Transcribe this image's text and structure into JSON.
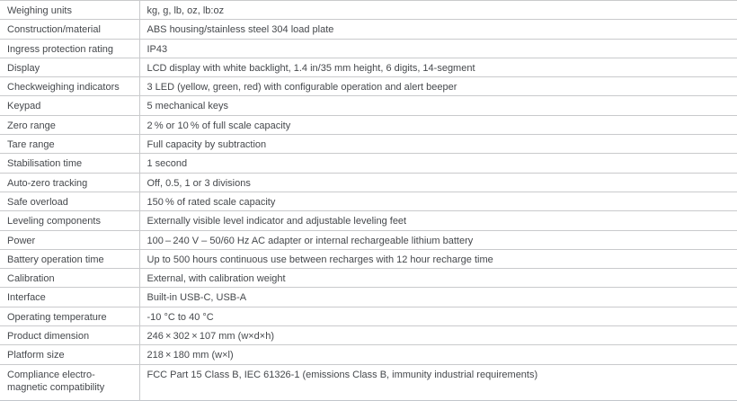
{
  "colors": {
    "background": "#ffffff",
    "border": "#c9cacc",
    "text": "#45484c"
  },
  "table": {
    "rows": [
      {
        "label": "Weighing units",
        "value": "kg, g, lb, oz, lb:oz"
      },
      {
        "label": "Construction/material",
        "value": "ABS housing/stainless steel 304 load plate"
      },
      {
        "label": "Ingress protection rating",
        "value": "IP43"
      },
      {
        "label": "Display",
        "value": "LCD display with white backlight, 1.4 in/35 mm height, 6 digits, 14-segment"
      },
      {
        "label": "Checkweighing indicators",
        "value": "3 LED (yellow, green, red) with configurable operation and alert beeper"
      },
      {
        "label": "Keypad",
        "value": "5 mechanical keys"
      },
      {
        "label": "Zero range",
        "value": "2 % or 10 % of full scale capacity"
      },
      {
        "label": "Tare range",
        "value": "Full capacity by subtraction"
      },
      {
        "label": "Stabilisation time",
        "value": "1 second"
      },
      {
        "label": "Auto-zero tracking",
        "value": "Off, 0.5, 1 or 3 divisions"
      },
      {
        "label": "Safe overload",
        "value": "150 % of rated scale capacity"
      },
      {
        "label": "Leveling components",
        "value": "Externally visible level indicator and adjustable leveling feet"
      },
      {
        "label": "Power",
        "value": "100 – 240 V – 50/60 Hz AC adapter or internal rechargeable lithium battery"
      },
      {
        "label": "Battery operation time",
        "value": "Up to 500 hours continuous use between recharges with 12 hour recharge time"
      },
      {
        "label": "Calibration",
        "value": "External, with calibration weight"
      },
      {
        "label": "Interface",
        "value": "Built-in USB-C, USB-A"
      },
      {
        "label": "Operating temperature",
        "value": "-10 °C to 40 °C"
      },
      {
        "label": "Product dimension",
        "value": "246 × 302 × 107 mm (w×d×h)"
      },
      {
        "label": "Platform size",
        "value": "218 × 180 mm (w×l)"
      },
      {
        "label": "Compliance electro-magnetic compatibility",
        "value": "FCC Part 15 Class B, IEC 61326-1 (emissions Class B, immunity industrial requirements)"
      }
    ]
  }
}
